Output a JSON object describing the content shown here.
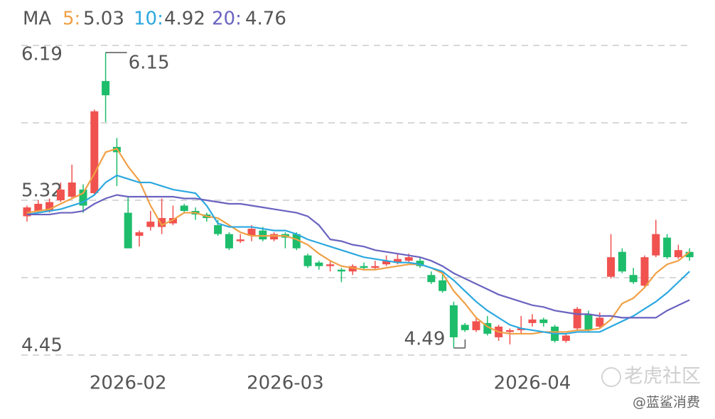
{
  "chart_data": {
    "type": "candlestick",
    "legend_title": "MA",
    "categories": [
      null,
      null,
      null,
      null,
      null,
      null,
      null,
      null,
      null,
      "2026-02",
      null,
      null,
      null,
      null,
      null,
      null,
      null,
      null,
      null,
      null,
      null,
      null,
      null,
      "2026-03",
      null,
      null,
      null,
      null,
      null,
      null,
      null,
      null,
      null,
      null,
      null,
      null,
      null,
      null,
      null,
      null,
      null,
      null,
      null,
      null,
      null,
      "2026-04",
      null,
      null,
      null,
      null,
      null,
      null,
      null,
      null,
      null,
      null,
      null,
      null,
      null,
      null
    ],
    "open": [
      5.23,
      5.26,
      5.26,
      5.32,
      5.34,
      5.38,
      5.36,
      5.99,
      5.62,
      5.25,
      5.12,
      5.17,
      5.17,
      5.19,
      5.29,
      5.26,
      5.24,
      5.18,
      5.13,
      5.09,
      5.12,
      5.15,
      5.1,
      5.13,
      5.13,
      5.01,
      4.97,
      4.95,
      4.93,
      4.92,
      4.95,
      4.94,
      4.96,
      4.97,
      4.98,
      4.98,
      4.9,
      4.87,
      4.73,
      4.62,
      4.59,
      4.63,
      4.55,
      4.58,
      4.59,
      4.63,
      4.65,
      4.61,
      4.53,
      4.6,
      4.68,
      4.61,
      4.89,
      5.03,
      4.9,
      4.84,
      5.01,
      5.11,
      5.0,
      5.03
    ],
    "high": [
      5.29,
      5.32,
      5.33,
      5.42,
      5.52,
      5.41,
      5.83,
      6.15,
      5.67,
      5.34,
      5.15,
      5.26,
      5.33,
      5.29,
      5.3,
      5.28,
      5.25,
      5.21,
      5.14,
      5.13,
      5.18,
      5.17,
      5.14,
      5.14,
      5.14,
      5.02,
      4.98,
      4.98,
      4.94,
      4.96,
      4.97,
      4.98,
      5.01,
      5.02,
      5.02,
      5.0,
      4.92,
      4.91,
      4.75,
      4.63,
      4.66,
      4.67,
      4.62,
      4.6,
      4.67,
      4.68,
      4.66,
      4.62,
      4.57,
      4.72,
      4.7,
      4.69,
      5.13,
      5.05,
      4.94,
      5.01,
      5.21,
      5.13,
      5.07,
      5.05
    ],
    "low": [
      5.2,
      5.25,
      5.25,
      5.31,
      5.33,
      5.25,
      5.35,
      5.76,
      5.4,
      5.05,
      5.06,
      5.15,
      5.13,
      5.18,
      5.25,
      5.21,
      5.2,
      5.12,
      5.04,
      5.08,
      5.09,
      5.09,
      5.09,
      5.05,
      5.04,
      4.94,
      4.93,
      4.92,
      4.86,
      4.9,
      4.93,
      4.93,
      4.95,
      4.96,
      4.97,
      4.94,
      4.85,
      4.8,
      4.49,
      4.58,
      4.58,
      4.56,
      4.53,
      4.51,
      4.57,
      4.61,
      4.61,
      4.52,
      4.52,
      4.59,
      4.58,
      4.6,
      4.88,
      4.91,
      4.85,
      4.83,
      5.0,
      4.99,
      4.99,
      4.98
    ],
    "close": [
      5.28,
      5.3,
      5.31,
      5.38,
      5.42,
      5.29,
      5.82,
      5.91,
      5.59,
      5.05,
      5.14,
      5.2,
      5.22,
      5.22,
      5.26,
      5.24,
      5.22,
      5.13,
      5.05,
      5.1,
      5.16,
      5.1,
      5.13,
      5.11,
      5.05,
      4.95,
      4.95,
      4.96,
      4.92,
      4.95,
      4.94,
      4.95,
      4.98,
      4.99,
      5.0,
      4.95,
      4.86,
      4.81,
      4.55,
      4.59,
      4.64,
      4.57,
      4.61,
      4.59,
      4.6,
      4.65,
      4.63,
      4.53,
      4.56,
      4.71,
      4.59,
      4.66,
      5.0,
      4.92,
      4.86,
      5.0,
      5.13,
      5.0,
      5.04,
      5.0
    ],
    "up_color": "#f0524f",
    "down_color": "#1dbd6b",
    "series": [
      {
        "name": "5:",
        "color": "#f0a045",
        "values": [
          5.25,
          5.26,
          5.27,
          5.3,
          5.33,
          5.36,
          5.47,
          5.59,
          5.61,
          5.51,
          5.43,
          5.29,
          5.18,
          5.21,
          5.25,
          5.25,
          5.23,
          5.22,
          5.18,
          5.14,
          5.12,
          5.12,
          5.12,
          5.12,
          5.1,
          5.07,
          5.02,
          4.98,
          4.95,
          4.94,
          4.93,
          4.93,
          4.94,
          4.95,
          4.96,
          4.96,
          4.94,
          4.91,
          4.81,
          4.74,
          4.66,
          4.61,
          4.58,
          4.57,
          4.57,
          4.57,
          4.58,
          4.58,
          4.58,
          4.59,
          4.59,
          4.6,
          4.65,
          4.74,
          4.77,
          4.83,
          4.91,
          4.96,
          4.98,
          5.03
        ]
      },
      {
        "name": "10:",
        "color": "#2ba8df",
        "values": [
          5.24,
          5.25,
          5.26,
          5.27,
          5.29,
          5.31,
          5.35,
          5.42,
          5.46,
          5.44,
          5.42,
          5.42,
          5.4,
          5.38,
          5.37,
          5.36,
          5.29,
          5.19,
          5.17,
          5.17,
          5.17,
          5.16,
          5.15,
          5.15,
          5.13,
          5.1,
          5.08,
          5.06,
          5.04,
          5.02,
          5.0,
          4.99,
          4.98,
          4.97,
          4.97,
          4.96,
          4.94,
          4.92,
          4.87,
          4.81,
          4.75,
          4.7,
          4.66,
          4.62,
          4.6,
          4.59,
          4.58,
          4.57,
          4.57,
          4.58,
          4.58,
          4.58,
          4.61,
          4.64,
          4.67,
          4.71,
          4.75,
          4.8,
          4.86,
          4.92
        ]
      },
      {
        "name": "20:",
        "color": "#6a63c0",
        "values": [
          5.24,
          5.24,
          5.24,
          5.25,
          5.25,
          5.26,
          5.3,
          5.33,
          5.35,
          5.34,
          5.34,
          5.34,
          5.34,
          5.34,
          5.33,
          5.33,
          5.32,
          5.31,
          5.3,
          5.3,
          5.29,
          5.28,
          5.27,
          5.26,
          5.25,
          5.23,
          5.18,
          5.1,
          5.09,
          5.07,
          5.06,
          5.04,
          5.03,
          5.02,
          5.01,
          5.0,
          4.98,
          4.95,
          4.91,
          4.88,
          4.85,
          4.82,
          4.79,
          4.77,
          4.75,
          4.73,
          4.72,
          4.7,
          4.69,
          4.68,
          4.68,
          4.67,
          4.67,
          4.66,
          4.66,
          4.66,
          4.66,
          4.7,
          4.73,
          4.76
        ]
      }
    ],
    "ylim": [
      4.45,
      6.19
    ],
    "yticks": [
      6.19,
      {
        "value": 5.755,
        "label": null
      },
      5.32,
      {
        "value": 4.885,
        "label": null
      },
      4.45
    ],
    "grid": true,
    "watermark": [
      "老虎社区",
      "@蓝鲨消费"
    ]
  }
}
